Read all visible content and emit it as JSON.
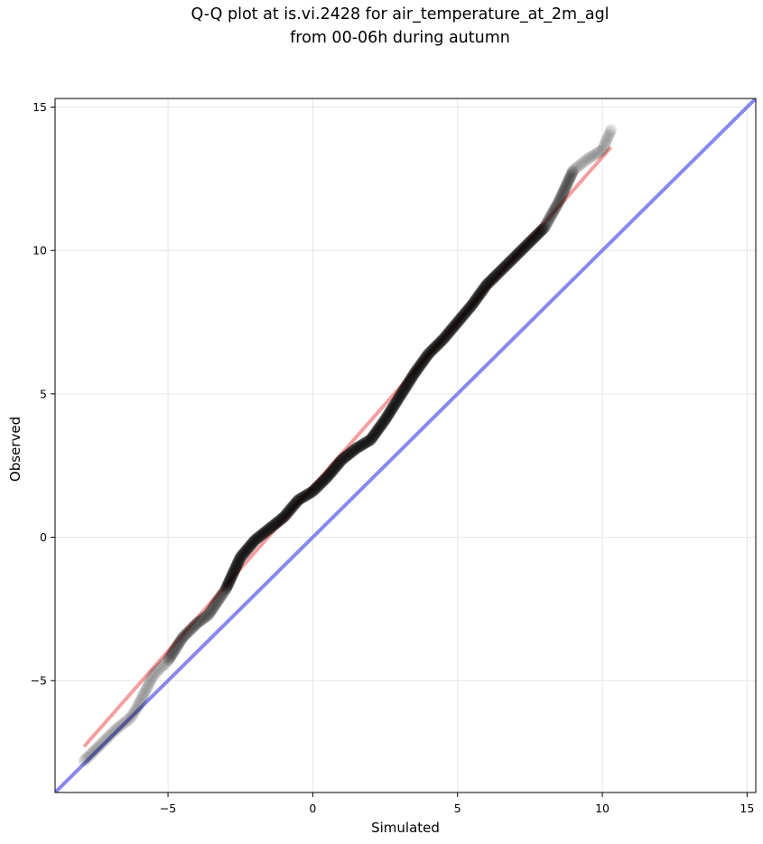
{
  "chart_data": {
    "type": "scatter",
    "title_lines": [
      "Q-Q plot at is.vi.2428 for air_temperature_at_2m_agl",
      "from 00-06h during autumn"
    ],
    "xlabel": "Simulated",
    "ylabel": "Observed",
    "xlim": [
      -8.9,
      15.3
    ],
    "ylim": [
      -8.9,
      15.3
    ],
    "xticks": [
      -5,
      0,
      5,
      10,
      15
    ],
    "yticks": [
      -5,
      0,
      5,
      10,
      15
    ],
    "xtick_labels": [
      "−5",
      "0",
      "5",
      "10",
      "15"
    ],
    "ytick_labels": [
      "−5",
      "0",
      "5",
      "10",
      "15"
    ],
    "grid": true,
    "legend": "none",
    "quantile_curve": {
      "x": [
        -7.9,
        -7.4,
        -6.8,
        -6.3,
        -6.1,
        -5.5,
        -5.0,
        -4.5,
        -4.0,
        -3.6,
        -3.0,
        -2.5,
        -2.0,
        -1.5,
        -1.0,
        -0.5,
        0.0,
        0.5,
        1.0,
        1.5,
        2.0,
        2.5,
        3.0,
        3.5,
        4.0,
        4.5,
        5.0,
        5.5,
        6.0,
        6.5,
        7.0,
        7.5,
        8.0,
        8.5,
        9.0,
        9.5,
        10.0,
        10.3
      ],
      "y": [
        -7.8,
        -7.3,
        -6.7,
        -6.3,
        -6.0,
        -4.8,
        -4.3,
        -3.5,
        -3.0,
        -2.7,
        -1.8,
        -0.7,
        -0.1,
        0.3,
        0.7,
        1.3,
        1.6,
        2.1,
        2.7,
        3.1,
        3.4,
        4.1,
        4.9,
        5.7,
        6.4,
        6.9,
        7.5,
        8.1,
        8.8,
        9.3,
        9.8,
        10.3,
        10.8,
        11.7,
        12.8,
        13.2,
        13.5,
        14.2
      ],
      "marker_color": "#000000",
      "marker_alpha": 0.1
    },
    "regression_line": {
      "x": [
        -7.9,
        10.3
      ],
      "y": [
        -7.3,
        13.6
      ],
      "color": "#f08080"
    },
    "identity_line": {
      "x": [
        -8.9,
        15.3
      ],
      "y": [
        -8.9,
        15.3
      ],
      "color": "#8888ee"
    }
  }
}
